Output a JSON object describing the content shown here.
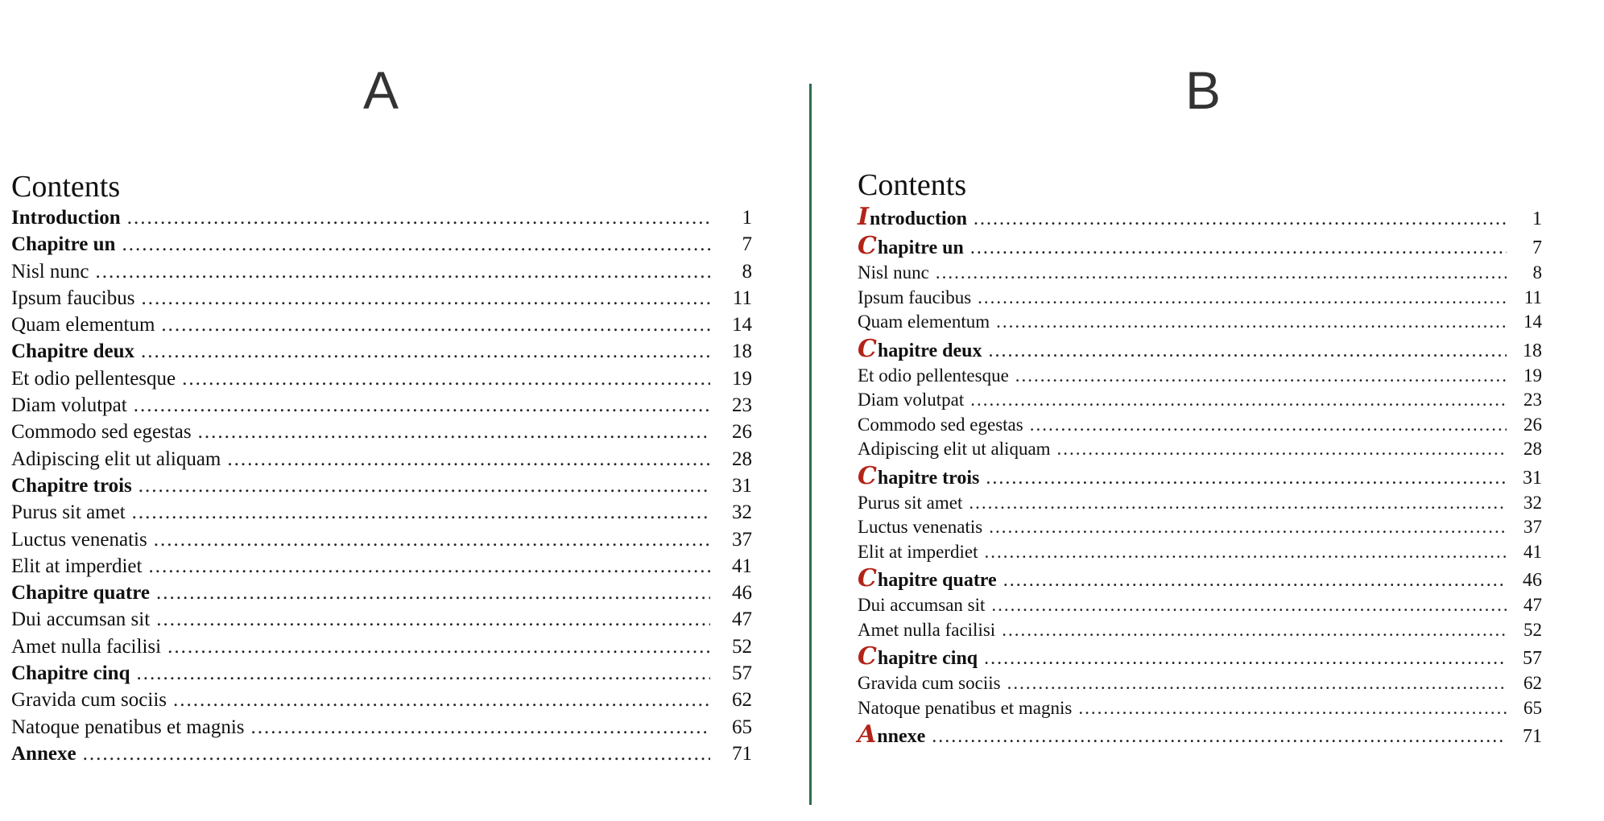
{
  "panels": {
    "a": {
      "letter": "A"
    },
    "b": {
      "letter": "B"
    }
  },
  "toc_title": "Contents",
  "colors": {
    "divider": "#2f6e4b",
    "dropcap": "#b22418"
  },
  "entries": [
    {
      "text": "Introduction",
      "page": "1",
      "bold": true,
      "initial": "I",
      "rest": "ntroduction"
    },
    {
      "text": "Chapitre un",
      "page": "7",
      "bold": true,
      "initial": "C",
      "rest": "hapitre un"
    },
    {
      "text": "Nisl nunc",
      "page": "8",
      "bold": false
    },
    {
      "text": "Ipsum faucibus",
      "page": "11",
      "bold": false
    },
    {
      "text": "Quam elementum",
      "page": "14",
      "bold": false
    },
    {
      "text": "Chapitre deux",
      "page": "18",
      "bold": true,
      "initial": "C",
      "rest": "hapitre deux"
    },
    {
      "text": "Et odio pellentesque",
      "page": "19",
      "bold": false
    },
    {
      "text": "Diam volutpat",
      "page": "23",
      "bold": false
    },
    {
      "text": "Commodo sed egestas",
      "page": "26",
      "bold": false
    },
    {
      "text": "Adipiscing elit ut aliquam",
      "page": "28",
      "bold": false
    },
    {
      "text": "Chapitre trois",
      "page": "31",
      "bold": true,
      "initial": "C",
      "rest": "hapitre trois"
    },
    {
      "text": "Purus sit amet",
      "page": "32",
      "bold": false
    },
    {
      "text": "Luctus venenatis",
      "page": "37",
      "bold": false
    },
    {
      "text": "Elit at imperdiet",
      "page": "41",
      "bold": false
    },
    {
      "text": "Chapitre quatre",
      "page": "46",
      "bold": true,
      "initial": "C",
      "rest": "hapitre quatre"
    },
    {
      "text": "Dui accumsan sit",
      "page": "47",
      "bold": false
    },
    {
      "text": "Amet nulla facilisi",
      "page": "52",
      "bold": false
    },
    {
      "text": "Chapitre cinq",
      "page": "57",
      "bold": true,
      "initial": "C",
      "rest": "hapitre cinq"
    },
    {
      "text": "Gravida cum sociis",
      "page": "62",
      "bold": false
    },
    {
      "text": "Natoque penatibus et magnis",
      "page": "65",
      "bold": false
    },
    {
      "text": "Annexe",
      "page": "71",
      "bold": true,
      "initial": "A",
      "rest": "nnexe"
    }
  ]
}
